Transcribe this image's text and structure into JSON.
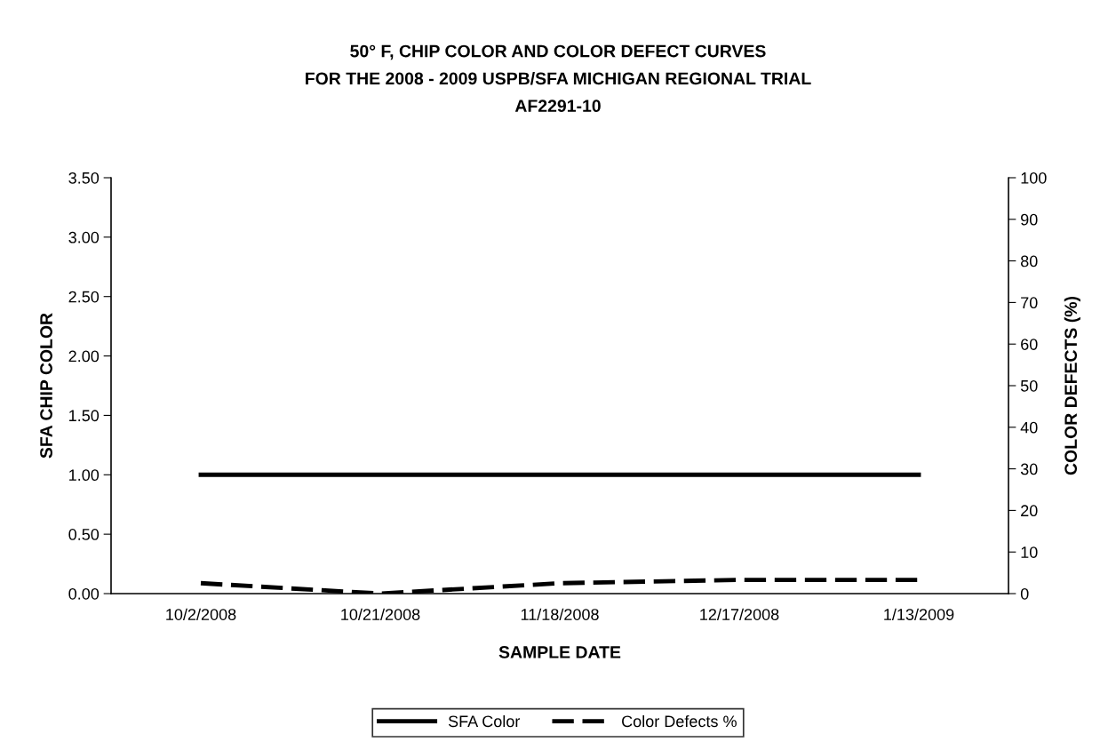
{
  "chart_data": {
    "type": "line",
    "title": "50° F, CHIP COLOR AND COLOR DEFECT CURVES\nFOR THE 2008 - 2009 USPB/SFA MICHIGAN REGIONAL TRIAL\nAF2291-10",
    "xlabel": "SAMPLE DATE",
    "ylabel": "SFA CHIP COLOR",
    "y2label": "COLOR DEFECTS (%)",
    "categories": [
      "10/2/2008",
      "10/21/2008",
      "11/18/2008",
      "12/17/2008",
      "1/13/2009"
    ],
    "series": [
      {
        "name": "SFA Color",
        "color": "#000000",
        "line_style": "solid",
        "values": [
          1.0,
          1.0,
          1.0,
          1.0,
          1.0
        ]
      },
      {
        "name": "Color Defects %",
        "color": "#000000",
        "line_style": "dashed",
        "axis": "y2",
        "values": [
          2.5,
          0,
          2.5,
          3.3,
          3.3
        ]
      }
    ],
    "ylim": [
      0,
      3.5
    ],
    "yticks": [
      {
        "value": 0,
        "label": "0.00"
      },
      {
        "value": 0.5,
        "label": "0.50"
      },
      {
        "value": 1,
        "label": "1.00"
      },
      {
        "value": 1.5,
        "label": "1.50"
      },
      {
        "value": 2,
        "label": "2.00"
      },
      {
        "value": 2.5,
        "label": "2.50"
      },
      {
        "value": 3,
        "label": "3.00"
      },
      {
        "value": 3.5,
        "label": "3.50"
      }
    ],
    "y2lim": [
      0,
      100
    ],
    "y2ticks": [
      0,
      10,
      20,
      30,
      40,
      50,
      60,
      70,
      80,
      90,
      100
    ],
    "grid": false,
    "legend": "bottom",
    "marker": "none"
  }
}
